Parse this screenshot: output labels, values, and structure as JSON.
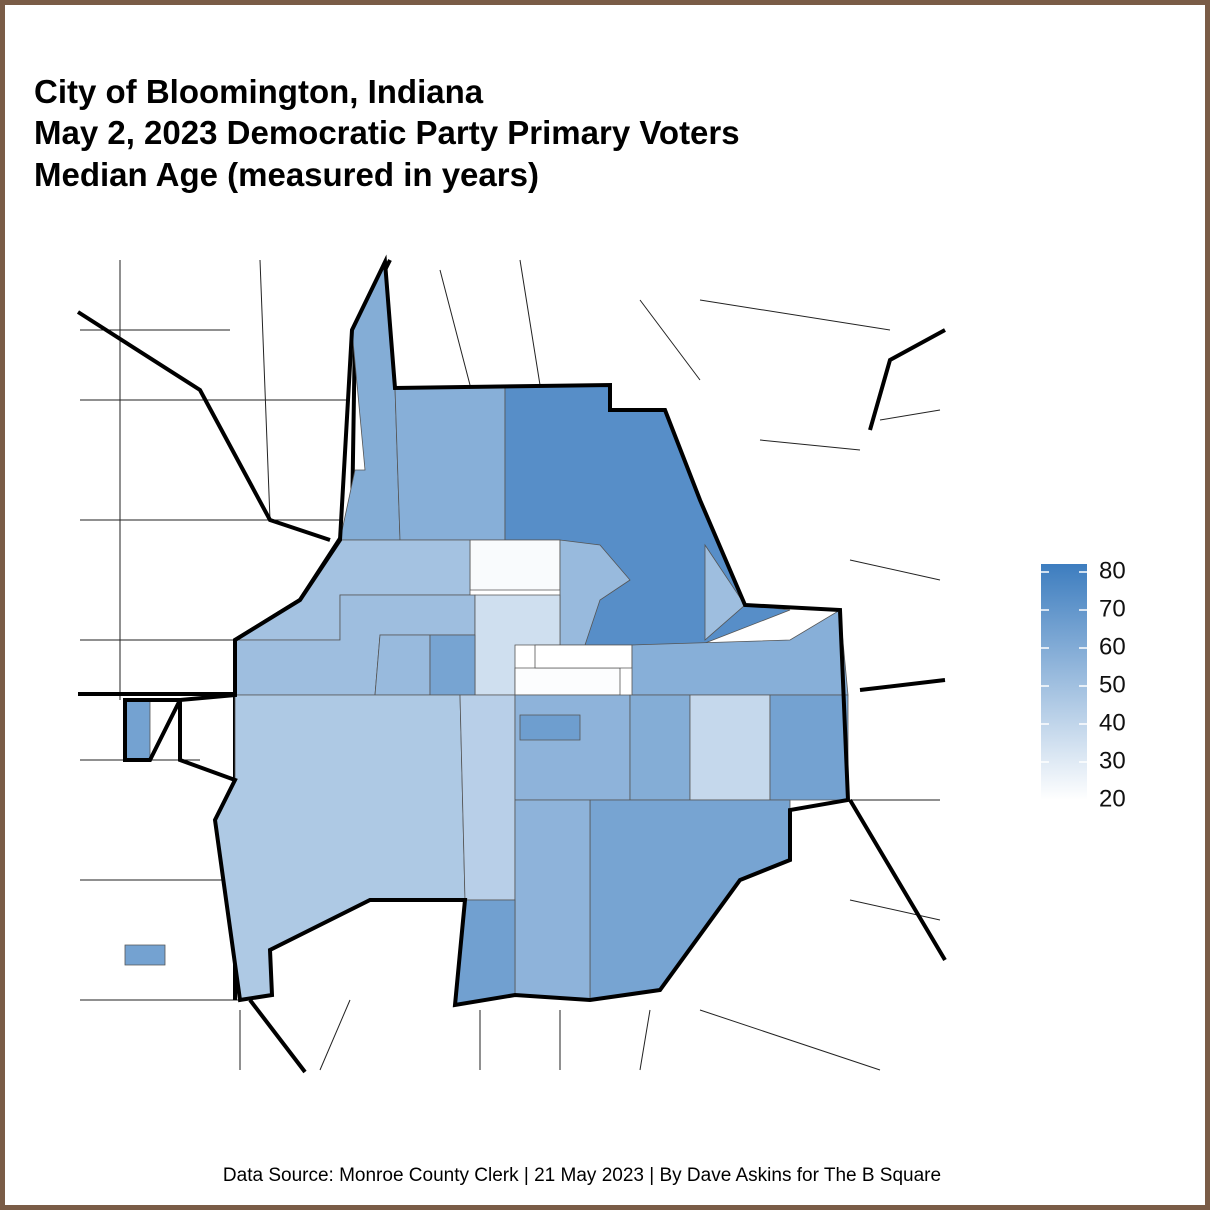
{
  "chart_data": {
    "type": "choropleth",
    "title": [
      "City of Bloomington, Indiana",
      "May 2, 2023 Democratic Party Primary Voters",
      "Median Age (measured in years)"
    ],
    "values": [
      58,
      57,
      72,
      22,
      48,
      52,
      50,
      50,
      35,
      21,
      20,
      52,
      62,
      57,
      45,
      42,
      55,
      65,
      58,
      38,
      63,
      62,
      55,
      64,
      63,
      63
    ],
    "colors": [
      "#ffffff",
      "#3d7dbf"
    ],
    "ylim": [
      20,
      80
    ],
    "yticks": [
      20,
      30,
      40,
      50,
      60,
      70,
      80
    ],
    "source": "Data Source: Monroe County Clerk | 21 May 2023 | By Dave Askins for The B Square"
  }
}
